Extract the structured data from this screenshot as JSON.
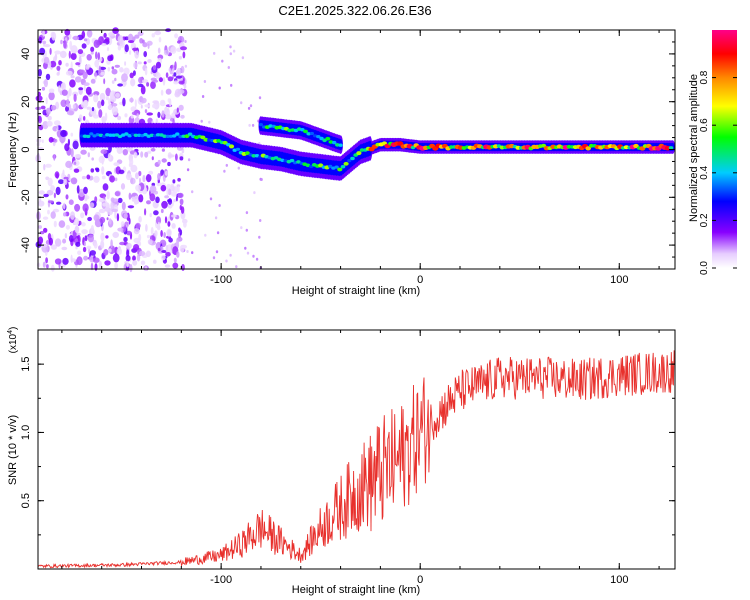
{
  "title": "C2E1.2025.322.06.26.E36",
  "chart_data": [
    {
      "type": "heatmap",
      "xlabel": "Height of straight line (km)",
      "ylabel": "Frequency (Hz)",
      "xlim": [
        -192,
        128
      ],
      "ylim": [
        -50,
        50
      ],
      "xticks": [
        -100,
        0,
        100
      ],
      "xtick_labels": [
        "-100",
        "0",
        "100"
      ],
      "yticks": [
        -40,
        -20,
        0,
        20,
        40
      ],
      "ytick_labels": [
        "-40",
        "-20",
        "0",
        "20",
        "40"
      ],
      "colorbar": {
        "label": "Normalized spectral amplitude",
        "range": [
          0,
          1
        ],
        "ticks": [
          0.0,
          0.2,
          0.4,
          0.6,
          0.8
        ],
        "tick_labels": [
          "0.0",
          "0.2",
          "0.4",
          "0.6",
          "0.8"
        ],
        "colors": [
          "#ffffff",
          "#8800ff",
          "#0000ff",
          "#00ffff",
          "#00ff00",
          "#ffff00",
          "#ff8800",
          "#ff0000",
          "#ff0088"
        ]
      },
      "ridge": {
        "x": [
          -170,
          -150,
          -130,
          -115,
          -100,
          -90,
          -80,
          -70,
          -60,
          -50,
          -40,
          -30,
          -20,
          -10,
          0,
          20,
          40,
          60,
          80,
          100,
          128
        ],
        "freq": [
          6,
          6,
          6,
          6,
          3,
          -1,
          -3,
          -4,
          -6,
          -7,
          -8,
          -1,
          2,
          2,
          1,
          1,
          1,
          1,
          1,
          1,
          1
        ]
      },
      "branch": {
        "x": [
          -80,
          -70,
          -60,
          -50,
          -40
        ],
        "freq": [
          10,
          9,
          8,
          5,
          2
        ]
      }
    },
    {
      "type": "line",
      "xlabel": "Height of straight line (km)",
      "ylabel": "SNR (10 * v/v)",
      "y_multiplier_label": "(x10",
      "y_multiplier_exp": "4",
      "y_multiplier_close": ")",
      "xlim": [
        -192,
        128
      ],
      "ylim": [
        0,
        1.75
      ],
      "xticks": [
        -100,
        0,
        100
      ],
      "xtick_labels": [
        "-100",
        "0",
        "100"
      ],
      "yticks": [
        0.5,
        1.0,
        1.5
      ],
      "ytick_labels": [
        "0.5",
        "1.0",
        "1.5"
      ],
      "color": "#e8302c",
      "envelope_x": [
        -192,
        -150,
        -120,
        -100,
        -90,
        -80,
        -70,
        -60,
        -50,
        -40,
        -30,
        -20,
        -10,
        0,
        10,
        20,
        30,
        40,
        60,
        80,
        100,
        128
      ],
      "envelope_y": [
        0.02,
        0.03,
        0.05,
        0.1,
        0.18,
        0.3,
        0.2,
        0.1,
        0.3,
        0.45,
        0.6,
        0.7,
        0.8,
        1.0,
        1.15,
        1.3,
        1.35,
        1.4,
        1.4,
        1.38,
        1.42,
        1.45
      ]
    }
  ]
}
